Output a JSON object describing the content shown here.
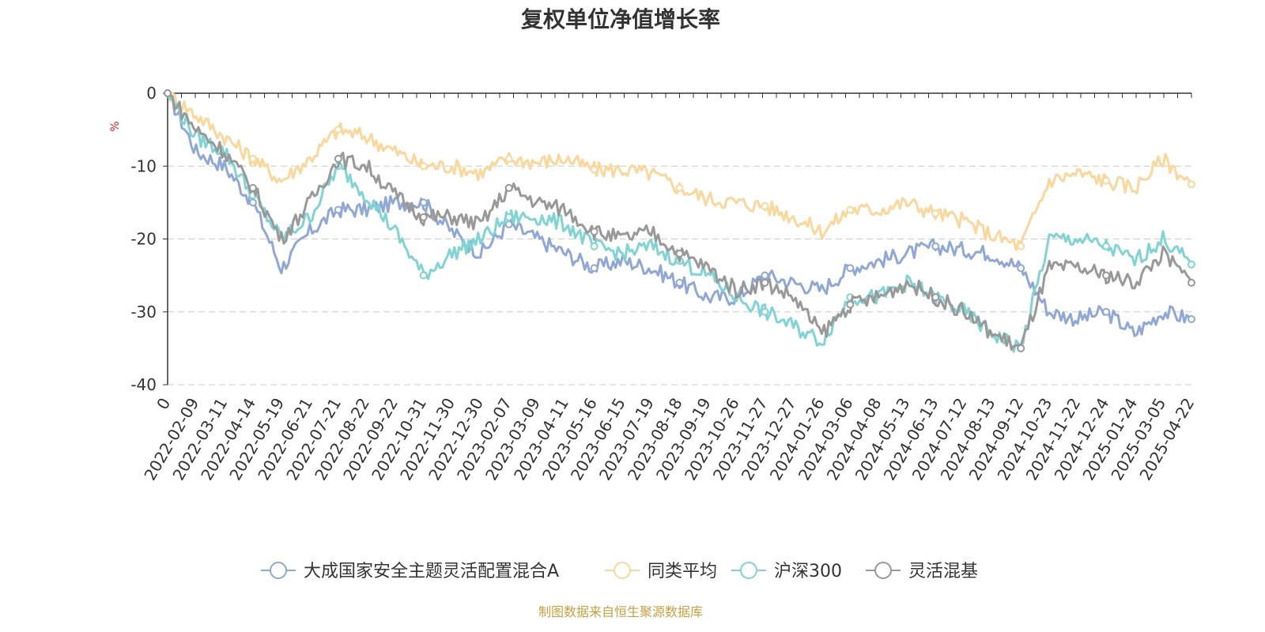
{
  "chart_data": {
    "type": "line",
    "title": "复权单位净值增长率",
    "ylabel": "%",
    "ylim": [
      -40,
      0
    ],
    "yticks": [
      0,
      -10,
      -20,
      -30,
      -40
    ],
    "grid": true,
    "legend_position": "bottom",
    "x": [
      "0",
      "2022-02-09",
      "2022-03-11",
      "2022-04-14",
      "2022-05-19",
      "2022-06-21",
      "2022-07-21",
      "2022-08-22",
      "2022-09-22",
      "2022-10-31",
      "2022-11-30",
      "2022-12-30",
      "2023-02-07",
      "2023-03-09",
      "2023-04-11",
      "2023-05-16",
      "2023-06-15",
      "2023-07-19",
      "2023-08-18",
      "2023-09-19",
      "2023-10-26",
      "2023-11-27",
      "2023-12-27",
      "2024-01-26",
      "2024-03-06",
      "2024-04-08",
      "2024-05-13",
      "2024-06-13",
      "2024-07-12",
      "2024-08-13",
      "2024-09-12",
      "2024-10-23",
      "2024-11-22",
      "2024-12-24",
      "2025-01-24",
      "2025-03-05",
      "2025-04-22"
    ],
    "series": [
      {
        "name": "大成国家安全主题灵活配置混合A",
        "color": "#8fa8d8",
        "values": [
          0,
          -8,
          -10,
          -15,
          -24,
          -19,
          -16,
          -16,
          -15,
          -15,
          -19,
          -22,
          -18,
          -20,
          -22,
          -24,
          -23,
          -24,
          -26,
          -28,
          -28,
          -25,
          -26,
          -27,
          -24,
          -23,
          -22,
          -21,
          -21.5,
          -22,
          -24,
          -30,
          -31,
          -30,
          -33,
          -30,
          -31
        ]
      },
      {
        "name": "同类平均",
        "color": "#fcd79a",
        "values": [
          0,
          -3,
          -6,
          -9,
          -12,
          -9,
          -5,
          -6,
          -8,
          -10,
          -10,
          -11,
          -9,
          -9.5,
          -9,
          -10.5,
          -10.5,
          -11,
          -13,
          -14.5,
          -15,
          -15.5,
          -17,
          -19,
          -16,
          -16,
          -15,
          -16.5,
          -17.5,
          -19.5,
          -21,
          -12,
          -11,
          -12,
          -13,
          -9,
          -12.5
        ]
      },
      {
        "name": "沪深300",
        "color": "#7fd4d4",
        "values": [
          0,
          -6,
          -8,
          -14,
          -20,
          -17,
          -10,
          -14,
          -19,
          -25,
          -22,
          -20,
          -17,
          -17,
          -18,
          -21,
          -22,
          -21,
          -23,
          -25,
          -28,
          -30,
          -32,
          -34,
          -28,
          -28,
          -26,
          -28,
          -30,
          -33,
          -35,
          -20,
          -20,
          -21,
          -23,
          -20,
          -23.5
        ]
      },
      {
        "name": "灵活混基",
        "color": "#999999",
        "values": [
          0,
          -5,
          -8,
          -13,
          -20,
          -15,
          -9,
          -10,
          -14,
          -17,
          -17,
          -18,
          -13,
          -15,
          -16,
          -19,
          -20,
          -19,
          -22,
          -24,
          -27,
          -26,
          -28,
          -33,
          -29,
          -28,
          -26,
          -28,
          -30,
          -33,
          -35,
          -24,
          -24,
          -25,
          -26,
          -22,
          -26
        ]
      }
    ]
  },
  "footer": "制图数据来自恒生聚源数据库"
}
